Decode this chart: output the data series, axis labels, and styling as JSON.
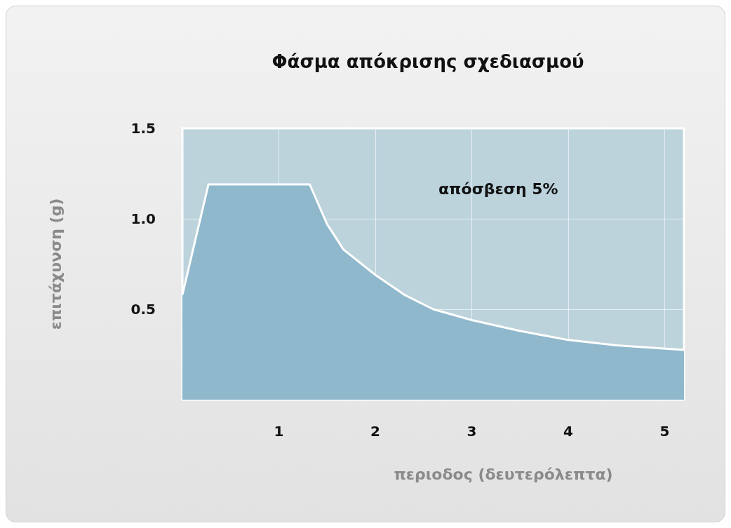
{
  "chart_data": {
    "type": "area",
    "title": "Φάσμα απόκρισης σχεδιασμού",
    "xlabel": "περιοδος (δευτερόλεπτα)",
    "ylabel": "επιτάχυνση (g)",
    "annotations": [
      "απόσβεση 5%"
    ],
    "x": [
      0,
      0.27,
      1.32,
      1.5,
      1.67,
      2,
      2.3,
      2.6,
      3,
      3.5,
      4,
      4.5,
      5.2
    ],
    "series": [
      {
        "color": "#8fb8cc",
        "values": [
          0.58,
          1.19,
          1.19,
          0.97,
          0.83,
          0.69,
          0.58,
          0.5,
          0.44,
          0.38,
          0.33,
          0.3,
          0.275
        ]
      }
    ],
    "xlim": [
      0,
      5.2
    ],
    "xticks": [
      1,
      2,
      3,
      4,
      5
    ],
    "ylim": [
      0,
      1.5
    ],
    "yticks": [
      0.5,
      {
        "value": 1,
        "label": "1.0"
      },
      1.5
    ],
    "grid": true,
    "marker": "none",
    "line_style": "solid"
  }
}
